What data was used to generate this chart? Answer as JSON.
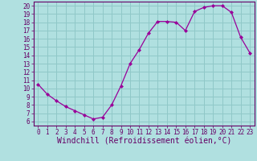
{
  "x": [
    0,
    1,
    2,
    3,
    4,
    5,
    6,
    7,
    8,
    9,
    10,
    11,
    12,
    13,
    14,
    15,
    16,
    17,
    18,
    19,
    20,
    21,
    22,
    23
  ],
  "y": [
    10.5,
    9.3,
    8.5,
    7.8,
    7.3,
    6.8,
    6.3,
    6.5,
    8.0,
    10.3,
    13.0,
    14.7,
    16.7,
    18.1,
    18.1,
    18.0,
    17.0,
    19.3,
    19.8,
    20.0,
    20.0,
    19.2,
    16.2,
    14.3
  ],
  "line_color": "#990099",
  "marker": "D",
  "marker_size": 2,
  "bg_color": "#b0e0e0",
  "grid_color": "#90c8c8",
  "xlabel": "Windchill (Refroidissement éolien,°C)",
  "xlim": [
    -0.5,
    23.5
  ],
  "ylim": [
    5.5,
    20.5
  ],
  "yticks": [
    6,
    7,
    8,
    9,
    10,
    11,
    12,
    13,
    14,
    15,
    16,
    17,
    18,
    19,
    20
  ],
  "xticks": [
    0,
    1,
    2,
    3,
    4,
    5,
    6,
    7,
    8,
    9,
    10,
    11,
    12,
    13,
    14,
    15,
    16,
    17,
    18,
    19,
    20,
    21,
    22,
    23
  ],
  "tick_color": "#660066",
  "axis_color": "#660066",
  "label_fontsize": 6.5,
  "tick_fontsize": 5.5,
  "xlabel_fontsize": 7
}
